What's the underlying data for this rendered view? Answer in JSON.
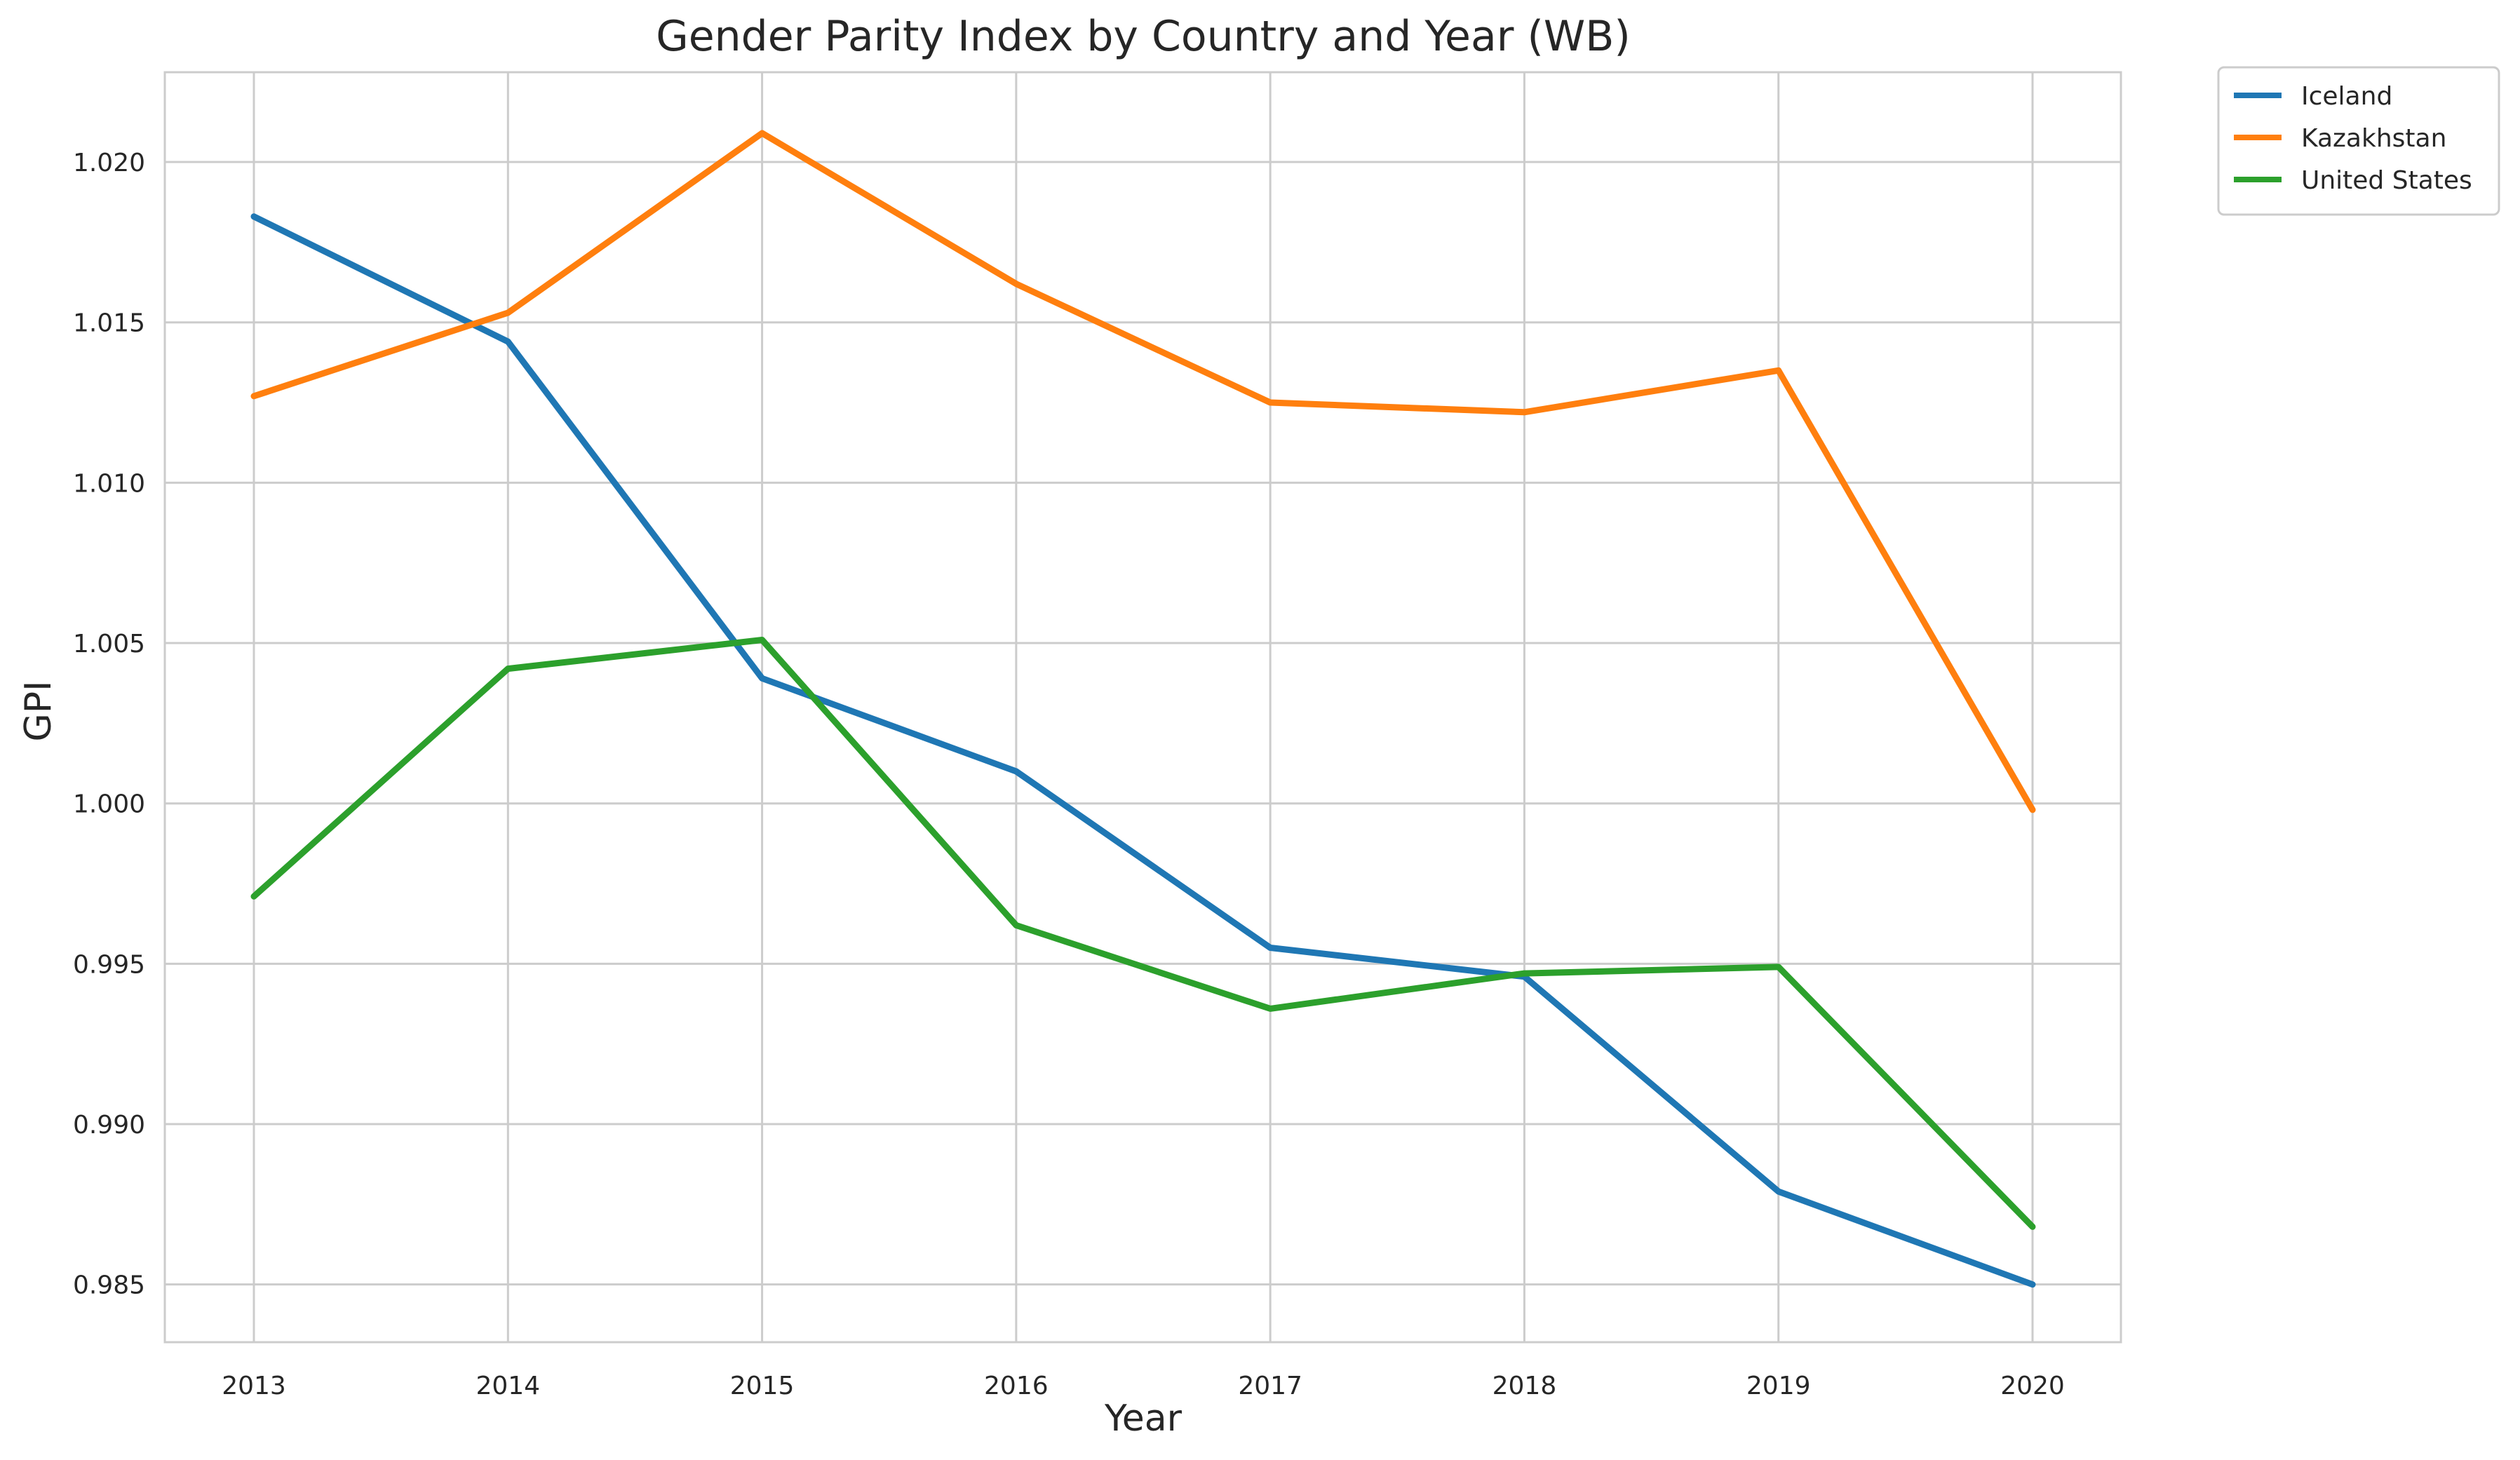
{
  "chart_data": {
    "type": "line",
    "title": "Gender Parity Index by Country and Year (WB)",
    "xlabel": "Year",
    "ylabel": "GPI",
    "categories": [
      "2013",
      "2014",
      "2015",
      "2016",
      "2017",
      "2018",
      "2019",
      "2020"
    ],
    "yticks": [
      "0.985",
      "0.990",
      "0.995",
      "1.000",
      "1.005",
      "1.010",
      "1.015",
      "1.020"
    ],
    "ylim": [
      0.9832,
      1.0228
    ],
    "grid": true,
    "legend_position": "outside top-right",
    "series": [
      {
        "name": "Iceland",
        "color": "#1f77b4",
        "values": [
          1.0183,
          1.0144,
          1.0039,
          1.001,
          0.9955,
          0.9946,
          0.9879,
          0.985
        ]
      },
      {
        "name": "Kazakhstan",
        "color": "#ff7f0e",
        "values": [
          1.0127,
          1.0153,
          1.0209,
          1.0162,
          1.0125,
          1.0122,
          1.0135,
          0.9998
        ]
      },
      {
        "name": "United States",
        "color": "#2ca02c",
        "values": [
          0.9971,
          1.0042,
          1.0051,
          0.9962,
          0.9936,
          0.9947,
          0.9949,
          0.9868
        ]
      }
    ]
  }
}
